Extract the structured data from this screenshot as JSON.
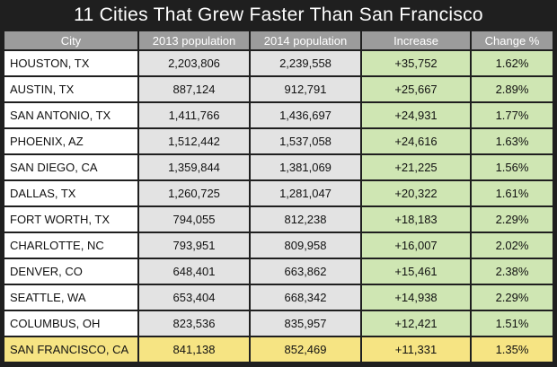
{
  "title": "11 Cities That Grew Faster Than San Francisco",
  "colors": {
    "background": "#1f1f1f",
    "header": "#9c9c9c",
    "city_cell": "#ffffff",
    "population_cells": "#e3e3e3",
    "growth_cells": "#cfe6b3",
    "highlight_row": "#f6e483"
  },
  "chart_data": {
    "type": "table",
    "title": "11 Cities That Grew Faster Than San Francisco",
    "columns": [
      "City",
      "2013 population",
      "2014 population",
      "Increase",
      "Change %"
    ],
    "rows": [
      [
        "HOUSTON, TX",
        "2,203,806",
        "2,239,558",
        "+35,752",
        "1.62%"
      ],
      [
        "AUSTIN, TX",
        "887,124",
        "912,791",
        "+25,667",
        "2.89%"
      ],
      [
        "SAN ANTONIO, TX",
        "1,411,766",
        "1,436,697",
        "+24,931",
        "1.77%"
      ],
      [
        "PHOENIX, AZ",
        "1,512,442",
        "1,537,058",
        "+24,616",
        "1.63%"
      ],
      [
        "SAN DIEGO, CA",
        "1,359,844",
        "1,381,069",
        "+21,225",
        "1.56%"
      ],
      [
        "DALLAS, TX",
        "1,260,725",
        "1,281,047",
        "+20,322",
        "1.61%"
      ],
      [
        "FORT WORTH, TX",
        "794,055",
        "812,238",
        "+18,183",
        "2.29%"
      ],
      [
        "CHARLOTTE, NC",
        "793,951",
        "809,958",
        "+16,007",
        "2.02%"
      ],
      [
        "DENVER, CO",
        "648,401",
        "663,862",
        "+15,461",
        "2.38%"
      ],
      [
        "SEATTLE, WA",
        "653,404",
        "668,342",
        "+14,938",
        "2.29%"
      ],
      [
        "COLUMBUS, OH",
        "823,536",
        "835,957",
        "+12,421",
        "1.51%"
      ],
      [
        "SAN FRANCISCO, CA",
        "841,138",
        "852,469",
        "+11,331",
        "1.35%"
      ]
    ],
    "highlighted_row": "SAN FRANCISCO, CA"
  }
}
